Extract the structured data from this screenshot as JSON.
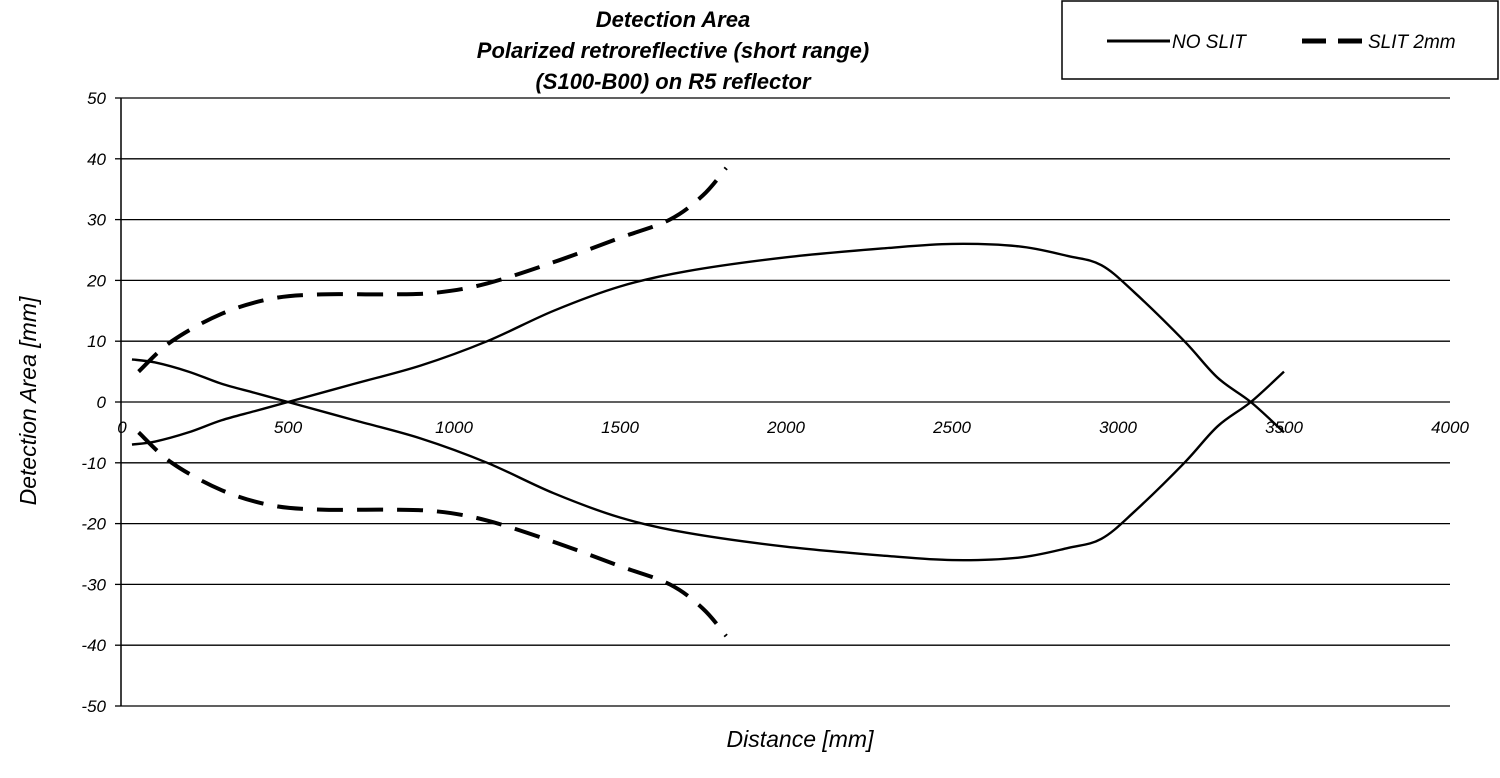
{
  "chart_data": {
    "type": "line",
    "title": [
      "Detection Area",
      "Polarized  retroreflective (short range)",
      "(S100-B00) on R5 reflector"
    ],
    "xlabel": "Distance [mm]",
    "ylabel": "Detection Area [mm]",
    "xlim": [
      0,
      4000
    ],
    "ylim": [
      -50,
      50
    ],
    "xticks": [
      0,
      500,
      1000,
      1500,
      2000,
      2500,
      3000,
      3500,
      4000
    ],
    "yticks": [
      50,
      40,
      30,
      20,
      10,
      0,
      -10,
      -20,
      -30,
      -40,
      -50
    ],
    "grid": "horizontal",
    "legend_position": "top-right",
    "series": [
      {
        "name": "NO SLIT",
        "style": "solid",
        "color": "#000000",
        "branches": [
          [
            [
              30,
              7
            ],
            [
              100,
              6.5
            ],
            [
              200,
              5
            ],
            [
              300,
              3
            ],
            [
              400,
              1.5
            ],
            [
              500,
              0
            ],
            [
              700,
              -3
            ],
            [
              900,
              -6
            ],
            [
              1100,
              -10
            ],
            [
              1300,
              -15
            ],
            [
              1500,
              -19
            ],
            [
              1700,
              -21.5
            ],
            [
              2000,
              -23.8
            ],
            [
              2300,
              -25.3
            ],
            [
              2500,
              -26
            ],
            [
              2700,
              -25.6
            ],
            [
              2850,
              -24
            ],
            [
              2950,
              -22.5
            ],
            [
              3050,
              -18
            ],
            [
              3200,
              -10
            ],
            [
              3300,
              -4
            ],
            [
              3400,
              0
            ],
            [
              3500,
              5
            ]
          ],
          [
            [
              30,
              -7
            ],
            [
              100,
              -6.5
            ],
            [
              200,
              -5
            ],
            [
              300,
              -3
            ],
            [
              400,
              -1.5
            ],
            [
              500,
              0
            ],
            [
              700,
              3
            ],
            [
              900,
              6
            ],
            [
              1100,
              10
            ],
            [
              1300,
              15
            ],
            [
              1500,
              19
            ],
            [
              1700,
              21.5
            ],
            [
              2000,
              23.8
            ],
            [
              2300,
              25.3
            ],
            [
              2500,
              26
            ],
            [
              2700,
              25.6
            ],
            [
              2850,
              24
            ],
            [
              2950,
              22.5
            ],
            [
              3050,
              18
            ],
            [
              3200,
              10
            ],
            [
              3300,
              4
            ],
            [
              3400,
              0
            ],
            [
              3500,
              -5
            ]
          ]
        ]
      },
      {
        "name": "SLIT 2mm",
        "style": "dashed",
        "color": "#000000",
        "branches": [
          [
            [
              50,
              5
            ],
            [
              150,
              10
            ],
            [
              300,
              14.5
            ],
            [
              450,
              17
            ],
            [
              600,
              17.7
            ],
            [
              800,
              17.7
            ],
            [
              950,
              18
            ],
            [
              1100,
              19.5
            ],
            [
              1300,
              23
            ],
            [
              1500,
              27
            ],
            [
              1650,
              30
            ],
            [
              1750,
              34
            ],
            [
              1820,
              38.5
            ]
          ],
          [
            [
              50,
              -5
            ],
            [
              150,
              -10
            ],
            [
              300,
              -14.5
            ],
            [
              450,
              -17
            ],
            [
              600,
              -17.7
            ],
            [
              800,
              -17.7
            ],
            [
              950,
              -18
            ],
            [
              1100,
              -19.5
            ],
            [
              1300,
              -23
            ],
            [
              1500,
              -27
            ],
            [
              1650,
              -30
            ],
            [
              1750,
              -34
            ],
            [
              1820,
              -38.5
            ]
          ]
        ]
      }
    ]
  }
}
